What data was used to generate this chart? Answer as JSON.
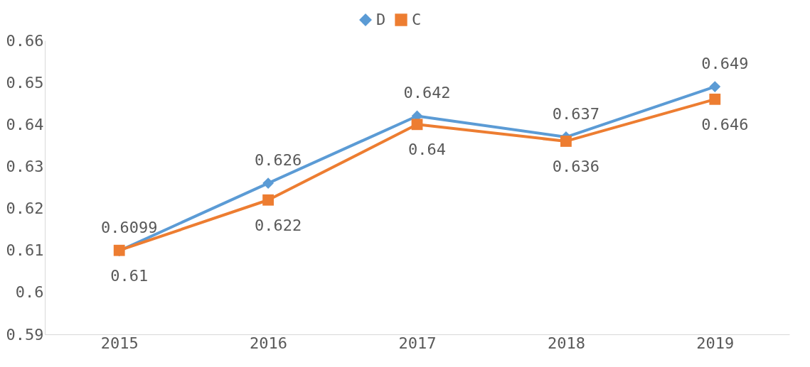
{
  "chart_data": {
    "type": "line",
    "categories": [
      "2015",
      "2016",
      "2017",
      "2018",
      "2019"
    ],
    "series": [
      {
        "name": "D",
        "color": "#5b9bd5",
        "marker": "diamond",
        "values": [
          0.6099,
          0.626,
          0.642,
          0.637,
          0.649
        ]
      },
      {
        "name": "C",
        "color": "#ed7d31",
        "marker": "square",
        "values": [
          0.61,
          0.622,
          0.64,
          0.636,
          0.646
        ]
      }
    ],
    "ylim": [
      0.59,
      0.66
    ],
    "yticks": [
      0.59,
      0.6,
      0.61,
      0.62,
      0.63,
      0.64,
      0.65,
      0.66
    ],
    "grid": false,
    "legend": "top",
    "data_labels": true
  }
}
